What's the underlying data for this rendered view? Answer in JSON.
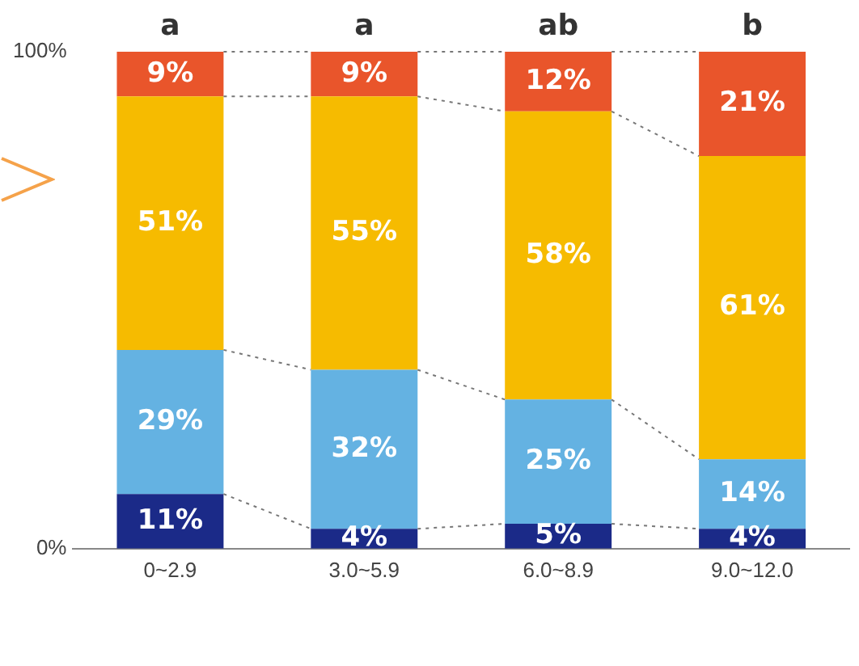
{
  "chart_data": {
    "type": "bar",
    "stacked": true,
    "categories": [
      "0~2.9",
      "3.0~5.9",
      "6.0~8.9",
      "9.0~12.0"
    ],
    "series": [
      {
        "color": "#1b2a88",
        "values": [
          11,
          4,
          5,
          4
        ],
        "value_labels": [
          "11%",
          "4%",
          "5%",
          "4%"
        ]
      },
      {
        "color": "#64b2e2",
        "values": [
          29,
          32,
          25,
          14
        ],
        "value_labels": [
          "29%",
          "32%",
          "25%",
          "14%"
        ]
      },
      {
        "color": "#f6bb00",
        "values": [
          51,
          55,
          58,
          61
        ],
        "value_labels": [
          "51%",
          "55%",
          "58%",
          "61%"
        ]
      },
      {
        "color": "#e9552b",
        "values": [
          9,
          9,
          12,
          21
        ],
        "value_labels": [
          "9%",
          "9%",
          "12%",
          "21%"
        ]
      }
    ],
    "ylim": [
      0,
      100
    ],
    "yticks": [
      {
        "value": 0,
        "label": "0%"
      },
      {
        "value": 100,
        "label": "100%"
      }
    ],
    "grid": false,
    "legend": false,
    "annotations": [
      {
        "text": "a",
        "x": "0~2.9",
        "y": 100
      },
      {
        "text": "a",
        "x": "3.0~5.9",
        "y": 100
      },
      {
        "text": "ab",
        "x": "6.0~8.9",
        "y": 100
      },
      {
        "text": "b",
        "x": "9.0~12.0",
        "y": 100
      }
    ]
  }
}
